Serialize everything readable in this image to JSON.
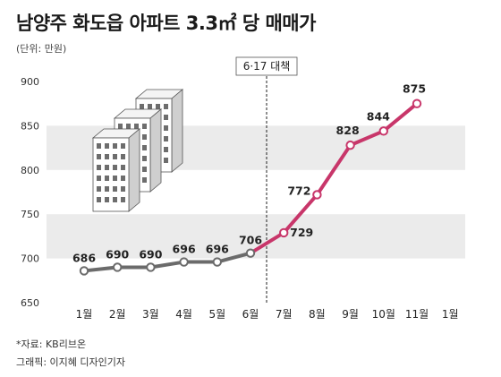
{
  "title": "남양주 화도읍 아파트 3.3㎡ 당 매매가",
  "unit": "(단위: 만원)",
  "source": "*자료: KB리브온",
  "credit": "그래픽: 이지혜 디자인기자",
  "chart_data": {
    "type": "line",
    "categories": [
      "1월",
      "2월",
      "3월",
      "4월",
      "5월",
      "6월",
      "7월",
      "8월",
      "9월",
      "10월",
      "11월",
      "1월"
    ],
    "series": [
      {
        "values": [
          686,
          690,
          690,
          696,
          696,
          706,
          729,
          772,
          828,
          844,
          875,
          null
        ]
      }
    ],
    "data_labels": [
      "686",
      "690",
      "690",
      "696",
      "696",
      "706",
      "729",
      "772",
      "828",
      "844",
      "875"
    ],
    "ylim": [
      650,
      900
    ],
    "yticks": [
      "650",
      "700",
      "750",
      "800",
      "850",
      "900"
    ],
    "annotation": {
      "label": "6·17 대책",
      "position": "between 6월 and 7월"
    },
    "colors": {
      "before": "#6b6b6b",
      "after": "#c8366a",
      "band": "#ebebeb"
    },
    "grid": true,
    "legend": "none"
  }
}
